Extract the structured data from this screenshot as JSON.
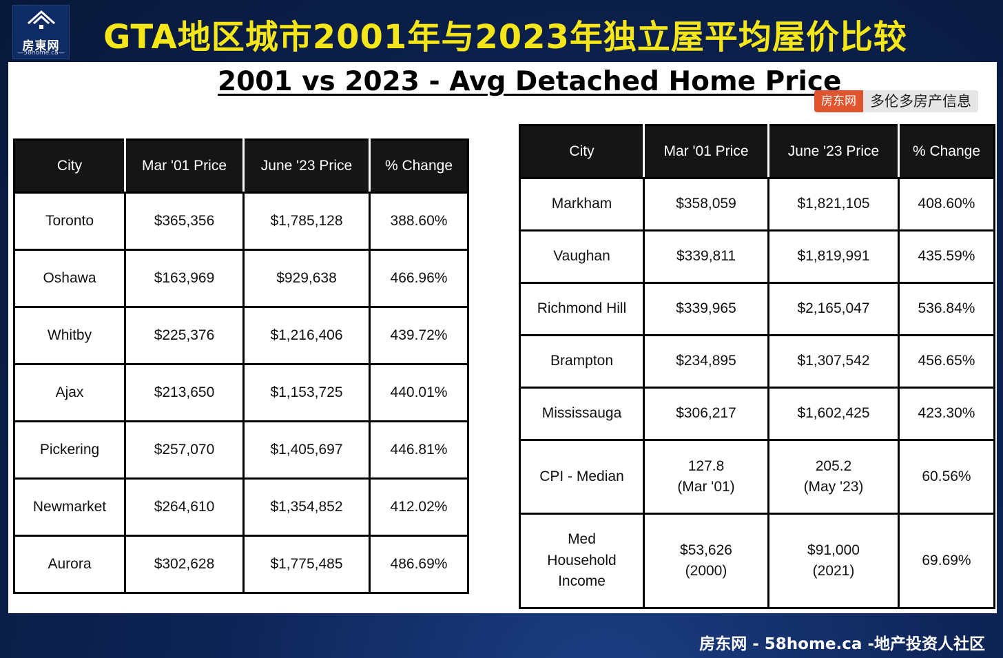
{
  "header": {
    "logo_name": "房東网",
    "logo_url": "58home.ca",
    "title": "GTA地区城市2001年与2023年独立屋平均屋价比较"
  },
  "subtitle": "2001 vs 2023 - Avg Detached Home Price",
  "brand_tag": {
    "name": "房东网",
    "slogan": "多伦多房产信息"
  },
  "columns": [
    "City",
    "Mar '01 Price",
    "June '23 Price",
    "% Change"
  ],
  "left_table": {
    "rows": [
      {
        "city": "Toronto",
        "mar01": "$365,356",
        "jun23": "$1,785,128",
        "change": "388.60%"
      },
      {
        "city": "Oshawa",
        "mar01": "$163,969",
        "jun23": "$929,638",
        "change": "466.96%"
      },
      {
        "city": "Whitby",
        "mar01": "$225,376",
        "jun23": "$1,216,406",
        "change": "439.72%"
      },
      {
        "city": "Ajax",
        "mar01": "$213,650",
        "jun23": "$1,153,725",
        "change": "440.01%"
      },
      {
        "city": "Pickering",
        "mar01": "$257,070",
        "jun23": "$1,405,697",
        "change": "446.81%"
      },
      {
        "city": "Newmarket",
        "mar01": "$264,610",
        "jun23": "$1,354,852",
        "change": "412.02%"
      },
      {
        "city": "Aurora",
        "mar01": "$302,628",
        "jun23": "$1,775,485",
        "change": "486.69%"
      }
    ]
  },
  "right_table": {
    "rows": [
      {
        "city": [
          "Markham"
        ],
        "mar01": [
          "$358,059"
        ],
        "jun23": [
          "$1,821,105"
        ],
        "change": [
          "408.60%"
        ]
      },
      {
        "city": [
          "Vaughan"
        ],
        "mar01": [
          "$339,811"
        ],
        "jun23": [
          "$1,819,991"
        ],
        "change": [
          "435.59%"
        ]
      },
      {
        "city": [
          "Richmond Hill"
        ],
        "mar01": [
          "$339,965"
        ],
        "jun23": [
          "$2,165,047"
        ],
        "change": [
          "536.84%"
        ]
      },
      {
        "city": [
          "Brampton"
        ],
        "mar01": [
          "$234,895"
        ],
        "jun23": [
          "$1,307,542"
        ],
        "change": [
          "456.65%"
        ]
      },
      {
        "city": [
          "Mississauga"
        ],
        "mar01": [
          "$306,217"
        ],
        "jun23": [
          "$1,602,425"
        ],
        "change": [
          "423.30%"
        ]
      },
      {
        "city": [
          "CPI - Median"
        ],
        "mar01": [
          "127.8",
          "(Mar '01)"
        ],
        "jun23": [
          "205.2",
          "(May '23)"
        ],
        "change": [
          "60.56%"
        ]
      },
      {
        "city": [
          "Med",
          "Household",
          "Income"
        ],
        "mar01": [
          "$53,626",
          "(2000)"
        ],
        "jun23": [
          "$91,000",
          "(2021)"
        ],
        "change": [
          "69.69%"
        ]
      }
    ]
  },
  "footer": "房东网 - 58home.ca -地产投资人社区",
  "colors": {
    "headline": "#f5e61a",
    "header_bg": "#151515",
    "brand_orange": "#e0542e",
    "page_bg": "#0b1f4a"
  }
}
